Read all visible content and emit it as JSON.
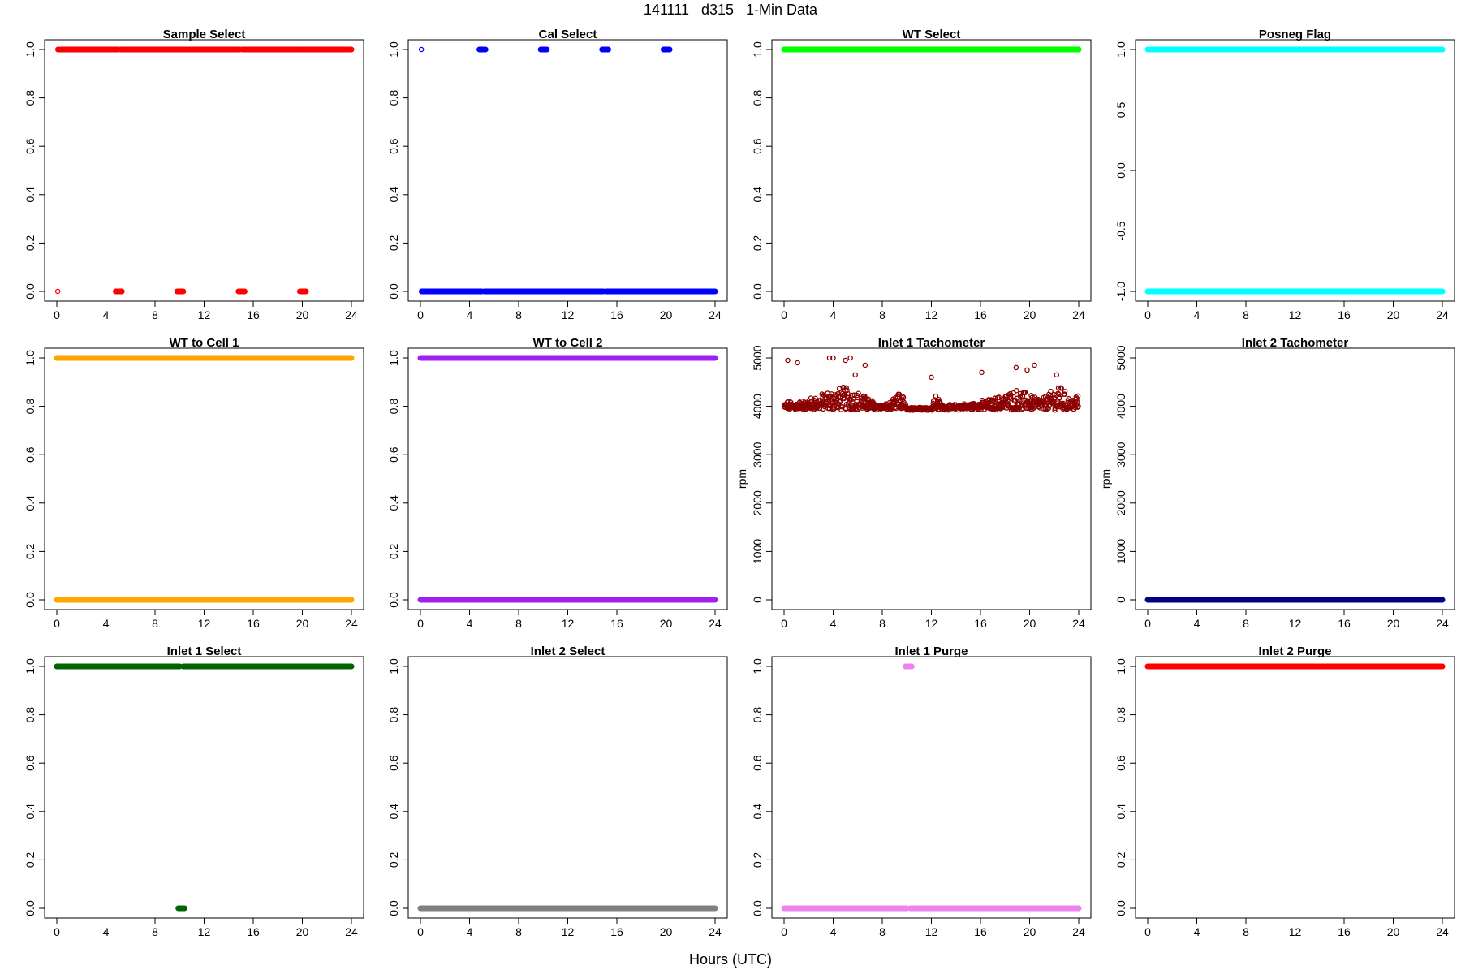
{
  "figure": {
    "title": "141111   d315   1-Min Data",
    "xlabel": "Hours (UTC)"
  },
  "chart_data": [
    {
      "type": "scatter",
      "title": "Sample Select",
      "xlabel": "",
      "ylabel": "",
      "xlim": [
        0,
        24
      ],
      "ylim": [
        0,
        1
      ],
      "xticks": [
        0,
        4,
        8,
        12,
        16,
        20,
        24
      ],
      "yticks": [
        0,
        0.2,
        0.4,
        0.6,
        0.8,
        1
      ],
      "ytick_labels": [
        "0.0",
        "0.2",
        "0.4",
        "0.6",
        "0.8",
        "1.0"
      ],
      "color": "#ff0000",
      "series": [
        {
          "y": 1,
          "segments": [
            [
              0.1,
              5.0
            ],
            [
              5.2,
              9.9
            ],
            [
              10.0,
              14.9
            ],
            [
              15.1,
              19.9
            ],
            [
              20.0,
              24.0
            ]
          ]
        },
        {
          "y": 0,
          "segments": [
            [
              0.05,
              0.1
            ],
            [
              4.8,
              5.3
            ],
            [
              9.8,
              10.3
            ],
            [
              14.8,
              15.3
            ],
            [
              19.8,
              20.3
            ]
          ]
        }
      ]
    },
    {
      "type": "scatter",
      "title": "Cal Select",
      "xlabel": "",
      "ylabel": "",
      "xlim": [
        0,
        24
      ],
      "ylim": [
        0,
        1
      ],
      "xticks": [
        0,
        4,
        8,
        12,
        16,
        20,
        24
      ],
      "yticks": [
        0,
        0.2,
        0.4,
        0.6,
        0.8,
        1
      ],
      "ytick_labels": [
        "0.0",
        "0.2",
        "0.4",
        "0.6",
        "0.8",
        "1.0"
      ],
      "color": "#0000ff",
      "series": [
        {
          "y": 1,
          "segments": [
            [
              0.05,
              0.1
            ],
            [
              4.8,
              5.3
            ],
            [
              9.8,
              10.3
            ],
            [
              14.8,
              15.3
            ],
            [
              19.8,
              20.3
            ]
          ]
        },
        {
          "y": 0,
          "segments": [
            [
              0.1,
              5.0
            ],
            [
              5.2,
              9.9
            ],
            [
              10.0,
              14.9
            ],
            [
              15.1,
              19.9
            ],
            [
              20.0,
              24.0
            ]
          ]
        }
      ]
    },
    {
      "type": "scatter",
      "title": "WT Select",
      "xlabel": "",
      "ylabel": "",
      "xlim": [
        0,
        24
      ],
      "ylim": [
        0,
        1
      ],
      "xticks": [
        0,
        4,
        8,
        12,
        16,
        20,
        24
      ],
      "yticks": [
        0,
        0.2,
        0.4,
        0.6,
        0.8,
        1
      ],
      "ytick_labels": [
        "0.0",
        "0.2",
        "0.4",
        "0.6",
        "0.8",
        "1.0"
      ],
      "color": "#00ff00",
      "series": [
        {
          "y": 1,
          "segments": [
            [
              0.0,
              24.0
            ]
          ]
        }
      ]
    },
    {
      "type": "scatter",
      "title": "Posneg Flag",
      "xlabel": "",
      "ylabel": "",
      "xlim": [
        0,
        24
      ],
      "ylim": [
        -1,
        1
      ],
      "xticks": [
        0,
        4,
        8,
        12,
        16,
        20,
        24
      ],
      "yticks": [
        -1,
        -0.5,
        0,
        0.5,
        1
      ],
      "ytick_labels": [
        "-1.0",
        "-0.5",
        "0.0",
        "0.5",
        "1.0"
      ],
      "color": "#00ffff",
      "series": [
        {
          "y": 1,
          "segments": [
            [
              0.0,
              24.0
            ]
          ]
        },
        {
          "y": -1,
          "segments": [
            [
              0.0,
              24.0
            ]
          ]
        }
      ]
    },
    {
      "type": "scatter",
      "title": "WT to Cell 1",
      "xlabel": "",
      "ylabel": "",
      "xlim": [
        0,
        24
      ],
      "ylim": [
        0,
        1
      ],
      "xticks": [
        0,
        4,
        8,
        12,
        16,
        20,
        24
      ],
      "yticks": [
        0,
        0.2,
        0.4,
        0.6,
        0.8,
        1
      ],
      "ytick_labels": [
        "0.0",
        "0.2",
        "0.4",
        "0.6",
        "0.8",
        "1.0"
      ],
      "color": "#ffa500",
      "series": [
        {
          "y": 1,
          "segments": [
            [
              0.0,
              24.0
            ]
          ]
        },
        {
          "y": 0,
          "segments": [
            [
              0.0,
              24.0
            ]
          ]
        }
      ]
    },
    {
      "type": "scatter",
      "title": "WT to Cell 2",
      "xlabel": "",
      "ylabel": "",
      "xlim": [
        0,
        24
      ],
      "ylim": [
        0,
        1
      ],
      "xticks": [
        0,
        4,
        8,
        12,
        16,
        20,
        24
      ],
      "yticks": [
        0,
        0.2,
        0.4,
        0.6,
        0.8,
        1
      ],
      "ytick_labels": [
        "0.0",
        "0.2",
        "0.4",
        "0.6",
        "0.8",
        "1.0"
      ],
      "color": "#a020f0",
      "series": [
        {
          "y": 1,
          "segments": [
            [
              0.0,
              24.0
            ]
          ]
        },
        {
          "y": 0,
          "segments": [
            [
              0.0,
              24.0
            ]
          ]
        }
      ]
    },
    {
      "type": "scatter",
      "title": "Inlet 1 Tachometer",
      "xlabel": "",
      "ylabel": "rpm",
      "xlim": [
        0,
        24
      ],
      "ylim": [
        0,
        5000
      ],
      "xticks": [
        0,
        4,
        8,
        12,
        16,
        20,
        24
      ],
      "yticks": [
        0,
        1000,
        2000,
        3000,
        4000,
        5000
      ],
      "ytick_labels": [
        "0",
        "1000",
        "2000",
        "3000",
        "4000",
        "5000"
      ],
      "color": "#8b0000",
      "baseline": 3950,
      "profile": [
        [
          0,
          4050
        ],
        [
          0.3,
          4100
        ],
        [
          1,
          4080
        ],
        [
          2,
          4150
        ],
        [
          3,
          4250
        ],
        [
          4,
          4350
        ],
        [
          5,
          4400
        ],
        [
          6,
          4300
        ],
        [
          7,
          4150
        ],
        [
          8,
          4000
        ],
        [
          8.8,
          4100
        ],
        [
          9.3,
          4250
        ],
        [
          9.6,
          4300
        ],
        [
          10,
          3950
        ],
        [
          12,
          3950
        ],
        [
          12.3,
          4250
        ],
        [
          13,
          4000
        ],
        [
          15,
          4050
        ],
        [
          16,
          4100
        ],
        [
          17,
          4150
        ],
        [
          18,
          4250
        ],
        [
          19,
          4350
        ],
        [
          20,
          4250
        ],
        [
          21,
          4150
        ],
        [
          22,
          4350
        ],
        [
          22.5,
          4450
        ],
        [
          23,
          4250
        ],
        [
          23.5,
          4150
        ],
        [
          24,
          4300
        ]
      ],
      "outliers": [
        [
          0.3,
          4950
        ],
        [
          1.1,
          4900
        ],
        [
          3.7,
          5100
        ],
        [
          4.0,
          5050
        ],
        [
          5.4,
          5150
        ],
        [
          5.0,
          4950
        ],
        [
          5.8,
          4650
        ],
        [
          6.6,
          4850
        ],
        [
          12.0,
          4600
        ],
        [
          16.1,
          4700
        ],
        [
          18.9,
          4800
        ],
        [
          19.8,
          4750
        ],
        [
          20.4,
          4850
        ],
        [
          22.2,
          4650
        ]
      ]
    },
    {
      "type": "scatter",
      "title": "Inlet 2 Tachometer",
      "xlabel": "",
      "ylabel": "rpm",
      "xlim": [
        0,
        24
      ],
      "ylim": [
        0,
        5000
      ],
      "xticks": [
        0,
        4,
        8,
        12,
        16,
        20,
        24
      ],
      "yticks": [
        0,
        1000,
        2000,
        3000,
        4000,
        5000
      ],
      "ytick_labels": [
        "0",
        "1000",
        "2000",
        "3000",
        "4000",
        "5000"
      ],
      "color": "#000080",
      "series": [
        {
          "y": 0,
          "segments": [
            [
              0.0,
              24.0
            ]
          ]
        }
      ]
    },
    {
      "type": "scatter",
      "title": "Inlet 1 Select",
      "xlabel": "",
      "ylabel": "",
      "xlim": [
        0,
        24
      ],
      "ylim": [
        0,
        1
      ],
      "xticks": [
        0,
        4,
        8,
        12,
        16,
        20,
        24
      ],
      "yticks": [
        0,
        0.2,
        0.4,
        0.6,
        0.8,
        1
      ],
      "ytick_labels": [
        "0.0",
        "0.2",
        "0.4",
        "0.6",
        "0.8",
        "1.0"
      ],
      "color": "#006400",
      "series": [
        {
          "y": 1,
          "segments": [
            [
              0.0,
              10.0
            ],
            [
              10.3,
              24.0
            ]
          ]
        },
        {
          "y": 0,
          "segments": [
            [
              9.9,
              10.4
            ]
          ]
        }
      ]
    },
    {
      "type": "scatter",
      "title": "Inlet 2 Select",
      "xlabel": "",
      "ylabel": "",
      "xlim": [
        0,
        24
      ],
      "ylim": [
        0,
        1
      ],
      "xticks": [
        0,
        4,
        8,
        12,
        16,
        20,
        24
      ],
      "yticks": [
        0,
        0.2,
        0.4,
        0.6,
        0.8,
        1
      ],
      "ytick_labels": [
        "0.0",
        "0.2",
        "0.4",
        "0.6",
        "0.8",
        "1.0"
      ],
      "color": "#808080",
      "series": [
        {
          "y": 0,
          "segments": [
            [
              0.0,
              24.0
            ]
          ]
        }
      ]
    },
    {
      "type": "scatter",
      "title": "Inlet 1 Purge",
      "xlabel": "",
      "ylabel": "",
      "xlim": [
        0,
        24
      ],
      "ylim": [
        0,
        1
      ],
      "xticks": [
        0,
        4,
        8,
        12,
        16,
        20,
        24
      ],
      "yticks": [
        0,
        0.2,
        0.4,
        0.6,
        0.8,
        1
      ],
      "ytick_labels": [
        "0.0",
        "0.2",
        "0.4",
        "0.6",
        "0.8",
        "1.0"
      ],
      "color": "#ee82ee",
      "series": [
        {
          "y": 1,
          "segments": [
            [
              9.9,
              10.4
            ]
          ]
        },
        {
          "y": 0,
          "segments": [
            [
              0.0,
              10.0
            ],
            [
              10.3,
              24.0
            ]
          ]
        }
      ]
    },
    {
      "type": "scatter",
      "title": "Inlet 2 Purge",
      "xlabel": "",
      "ylabel": "",
      "xlim": [
        0,
        24
      ],
      "ylim": [
        0,
        1
      ],
      "xticks": [
        0,
        4,
        8,
        12,
        16,
        20,
        24
      ],
      "yticks": [
        0,
        0.2,
        0.4,
        0.6,
        0.8,
        1
      ],
      "ytick_labels": [
        "0.0",
        "0.2",
        "0.4",
        "0.6",
        "0.8",
        "1.0"
      ],
      "color": "#ff0000",
      "series": [
        {
          "y": 1,
          "segments": [
            [
              0.0,
              24.0
            ]
          ]
        }
      ]
    }
  ]
}
